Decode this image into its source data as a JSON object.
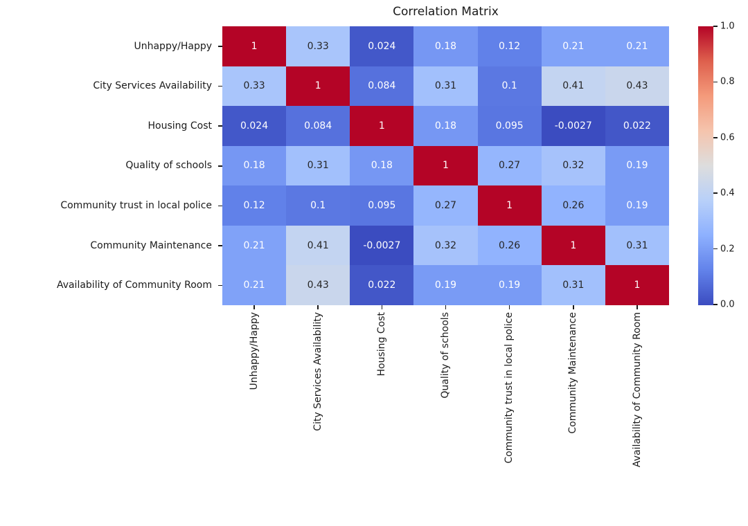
{
  "chart_data": {
    "type": "heatmap",
    "title": "Correlation Matrix",
    "categories": [
      "Unhappy/Happy",
      "City Services Availability",
      "Housing Cost",
      "Quality of schools",
      "Community trust in local police",
      "Community Maintenance",
      "Availability of Community Room"
    ],
    "matrix": [
      [
        "1",
        "0.33",
        "0.024",
        "0.18",
        "0.12",
        "0.21",
        "0.21"
      ],
      [
        "0.33",
        "1",
        "0.084",
        "0.31",
        "0.1",
        "0.41",
        "0.43"
      ],
      [
        "0.024",
        "0.084",
        "1",
        "0.18",
        "0.095",
        "-0.0027",
        "0.022"
      ],
      [
        "0.18",
        "0.31",
        "0.18",
        "1",
        "0.27",
        "0.32",
        "0.19"
      ],
      [
        "0.12",
        "0.1",
        "0.095",
        "0.27",
        "1",
        "0.26",
        "0.19"
      ],
      [
        "0.21",
        "0.41",
        "-0.0027",
        "0.32",
        "0.26",
        "1",
        "0.31"
      ],
      [
        "0.21",
        "0.43",
        "0.022",
        "0.19",
        "0.19",
        "0.31",
        "1"
      ]
    ],
    "vmin": -0.0027,
    "vmax": 1.0,
    "colorbar_ticks": [
      "0.0",
      "0.2",
      "0.4",
      "0.6",
      "0.8",
      "1.0"
    ],
    "colormap": {
      "name": "coolwarm",
      "stops": [
        {
          "t": 0.0,
          "color": [
            59,
            76,
            192
          ]
        },
        {
          "t": 0.125,
          "color": [
            98,
            130,
            234
          ]
        },
        {
          "t": 0.25,
          "color": [
            141,
            176,
            254
          ]
        },
        {
          "t": 0.375,
          "color": [
            184,
            208,
            249
          ]
        },
        {
          "t": 0.5,
          "color": [
            221,
            221,
            221
          ]
        },
        {
          "t": 0.625,
          "color": [
            245,
            196,
            173
          ]
        },
        {
          "t": 0.75,
          "color": [
            244,
            154,
            123
          ]
        },
        {
          "t": 0.875,
          "color": [
            222,
            96,
            77
          ]
        },
        {
          "t": 1.0,
          "color": [
            180,
            4,
            38
          ]
        }
      ]
    },
    "annotation_colors": {
      "dark": "#262626",
      "light": "#ffffff"
    },
    "grid": false,
    "legend_position": "right-colorbar"
  }
}
